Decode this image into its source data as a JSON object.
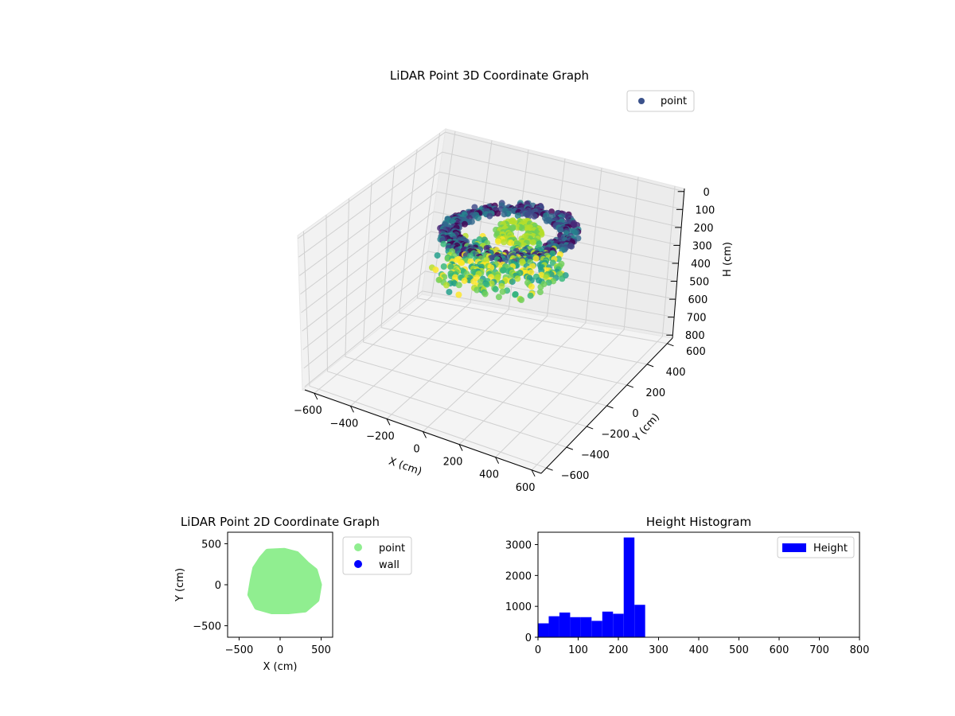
{
  "chart_data": [
    {
      "type": "scatter3d",
      "title": "LiDAR Point 3D Coordinate Graph",
      "xlabel": "X (cm)",
      "ylabel": "Y (cm)",
      "zlabel": "H (cm)",
      "xticks": [
        "−600",
        "−400",
        "−200",
        "0",
        "200",
        "400",
        "600"
      ],
      "yticks": [
        "−600",
        "−400",
        "−200",
        "0",
        "200",
        "400",
        "600"
      ],
      "zticks": [
        "0",
        "100",
        "200",
        "300",
        "400",
        "500",
        "600",
        "700",
        "800"
      ],
      "xlim": [
        -600,
        600
      ],
      "ylim": [
        -600,
        600
      ],
      "zlim": [
        0,
        800
      ],
      "zinverted": true,
      "colormap": "viridis",
      "legend": {
        "label": "point",
        "color": "#3b528b",
        "position": "top-right"
      },
      "grid": true
    },
    {
      "type": "scatter",
      "title": "LiDAR Point 2D Coordinate Graph",
      "xlabel": "X (cm)",
      "ylabel": "Y (cm)",
      "xticks": [
        "−500",
        "0",
        "500"
      ],
      "yticks": [
        "500",
        "0",
        "−500"
      ],
      "xlim": [
        -640,
        640
      ],
      "ylim": [
        -640,
        640
      ],
      "series": [
        {
          "name": "point",
          "color": "#90ee90"
        },
        {
          "name": "wall",
          "color": "#0000ff"
        }
      ],
      "legend_position": "outside-right"
    },
    {
      "type": "bar",
      "title": "Height Histogram",
      "series_name": "Height",
      "color": "#0000ff",
      "bin_edges": [
        0,
        26.7,
        53.3,
        80,
        106.7,
        133.3,
        160,
        186.7,
        213.3,
        240,
        266.7
      ],
      "values": [
        450,
        680,
        800,
        650,
        650,
        530,
        830,
        760,
        3230,
        1050
      ],
      "xlim": [
        0,
        800
      ],
      "ylim": [
        0,
        3400
      ],
      "xticks": [
        "0",
        "100",
        "200",
        "300",
        "400",
        "500",
        "600",
        "700",
        "800"
      ],
      "yticks": [
        "0",
        "1000",
        "2000",
        "3000"
      ],
      "legend_position": "top-right"
    }
  ]
}
